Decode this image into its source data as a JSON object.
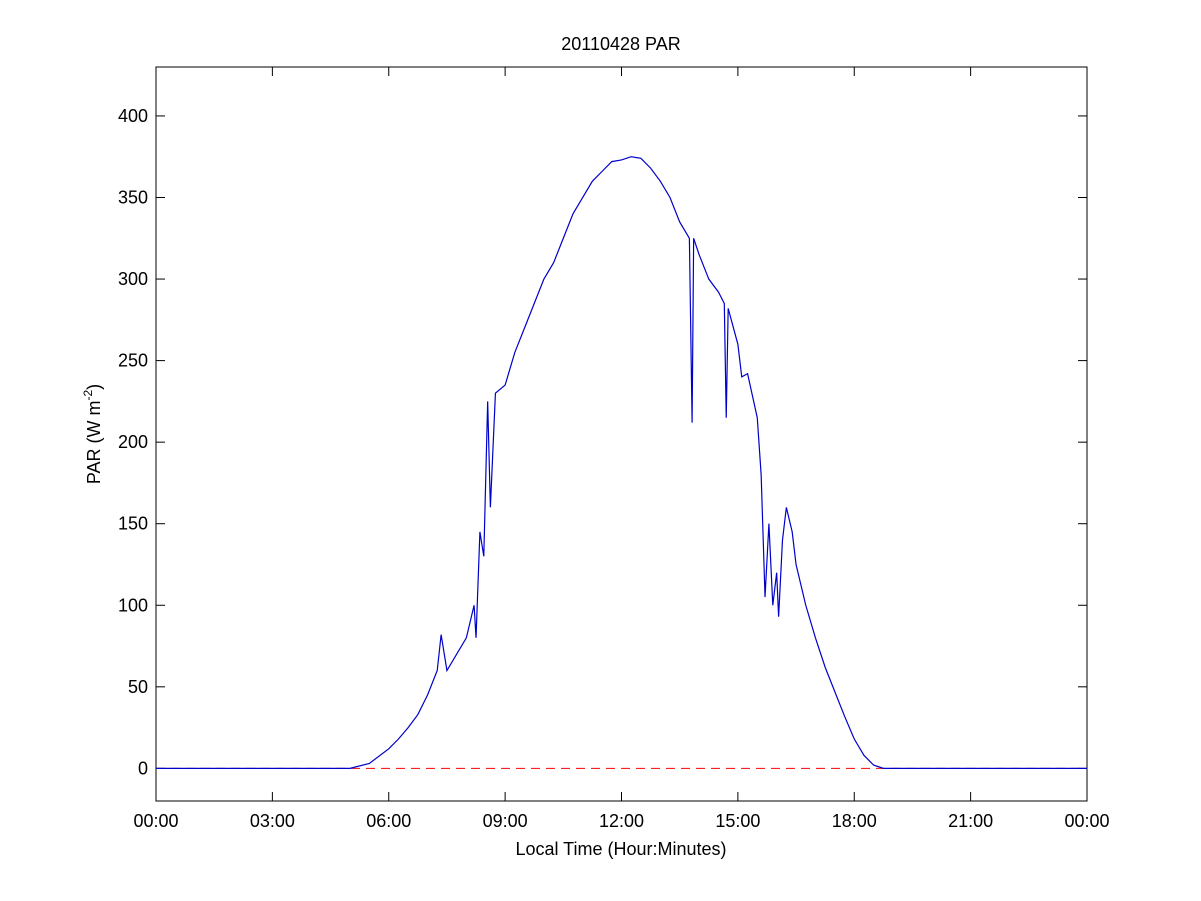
{
  "chart_data": {
    "type": "line",
    "title": "20110428 PAR",
    "xlabel": "Local Time (Hour:Minutes)",
    "ylabel": "PAR (W m",
    "ylabel_sup": "-2",
    "ylabel_end": ")",
    "x": [
      0,
      5.0,
      5.5,
      6.0,
      6.25,
      6.5,
      6.75,
      7.0,
      7.25,
      7.35,
      7.5,
      7.75,
      8.0,
      8.2,
      8.25,
      8.35,
      8.45,
      8.55,
      8.62,
      8.75,
      9.0,
      9.25,
      9.5,
      9.75,
      10.0,
      10.25,
      10.5,
      10.75,
      11.0,
      11.25,
      11.5,
      11.75,
      12.0,
      12.25,
      12.5,
      12.75,
      13.0,
      13.25,
      13.5,
      13.75,
      13.82,
      13.86,
      14.0,
      14.25,
      14.5,
      14.65,
      14.7,
      14.75,
      15.0,
      15.1,
      15.25,
      15.5,
      15.6,
      15.7,
      15.8,
      15.9,
      16.0,
      16.05,
      16.15,
      16.25,
      16.4,
      16.5,
      16.75,
      17.0,
      17.25,
      17.5,
      17.75,
      18.0,
      18.25,
      18.5,
      18.75,
      24
    ],
    "series": [
      {
        "color": "#0000cc",
        "values": [
          0,
          0,
          3,
          12,
          18,
          25,
          33,
          45,
          60,
          82,
          60,
          70,
          80,
          100,
          80,
          145,
          130,
          225,
          160,
          230,
          235,
          255,
          270,
          285,
          300,
          310,
          325,
          340,
          350,
          360,
          366,
          372,
          373,
          375,
          374,
          368,
          360,
          350,
          335,
          325,
          212,
          325,
          315,
          300,
          292,
          285,
          215,
          282,
          260,
          240,
          242,
          215,
          180,
          105,
          150,
          100,
          120,
          93,
          140,
          160,
          145,
          125,
          100,
          80,
          62,
          47,
          32,
          18,
          8,
          2,
          0,
          0
        ]
      }
    ],
    "reference_line": {
      "value": 0,
      "color": "#ff0000",
      "style": "dashed"
    },
    "xlim": [
      0,
      24
    ],
    "xticks": [
      {
        "value": 0,
        "label": "00:00"
      },
      {
        "value": 3,
        "label": "03:00"
      },
      {
        "value": 6,
        "label": "06:00"
      },
      {
        "value": 9,
        "label": "09:00"
      },
      {
        "value": 12,
        "label": "12:00"
      },
      {
        "value": 15,
        "label": "15:00"
      },
      {
        "value": 18,
        "label": "18:00"
      },
      {
        "value": 21,
        "label": "21:00"
      },
      {
        "value": 24,
        "label": "00:00"
      }
    ],
    "ylim": [
      -20,
      430
    ],
    "yticks": [
      0,
      50,
      100,
      150,
      200,
      250,
      300,
      350,
      400
    ],
    "grid": false
  }
}
